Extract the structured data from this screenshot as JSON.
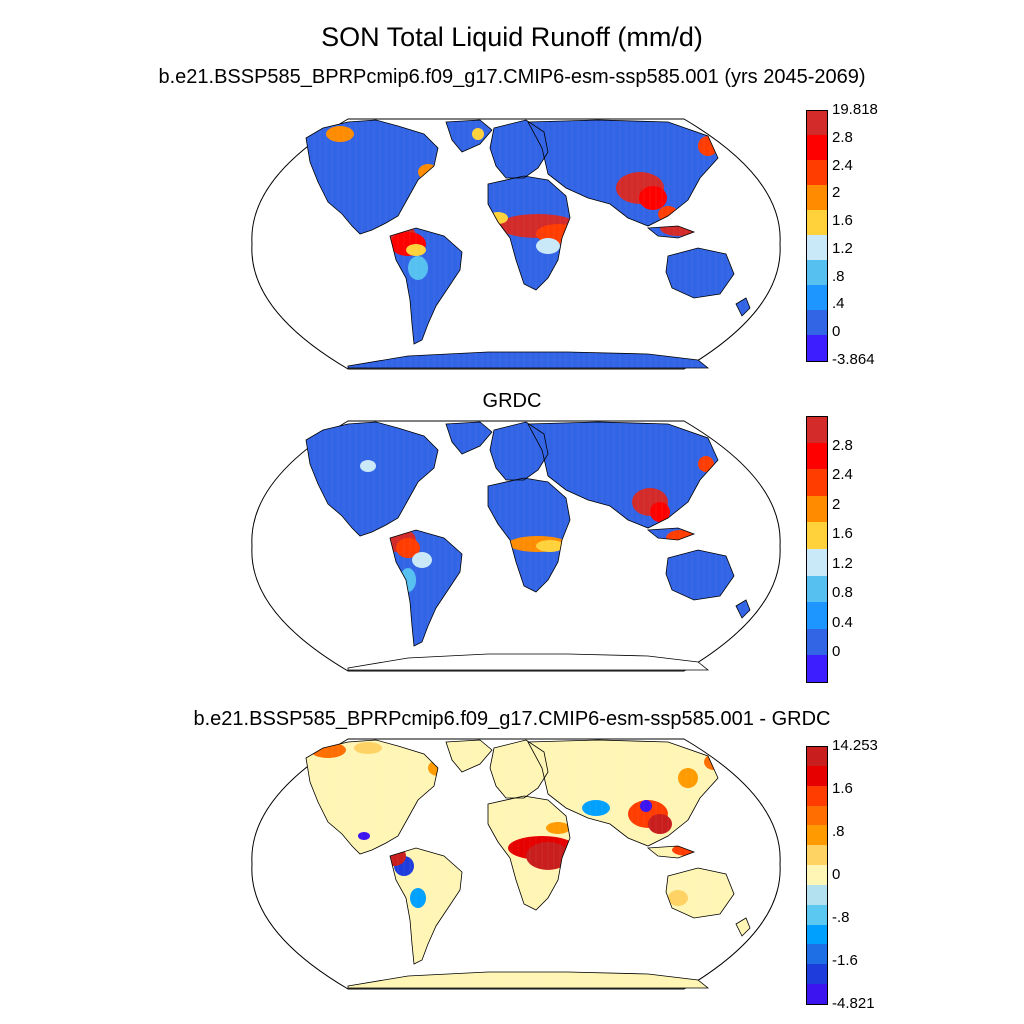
{
  "figure": {
    "title": "SON Total Liquid Runoff (mm/d)"
  },
  "panels": [
    {
      "id": "model",
      "subtitle": "b.e21.BSSP585_BPRPcmip6.f09_g17.CMIP6-esm-ssp585.001 (yrs 2045-2069)",
      "colorbar": {
        "labels": [
          "19.818",
          "2.8",
          "2.4",
          "2",
          "1.6",
          "1.2",
          ".8",
          ".4",
          "0",
          "-3.864"
        ],
        "colors": [
          "#d32a2a",
          "#ff0000",
          "#ff3d00",
          "#ff8c00",
          "#ffd23c",
          "#c9e8f8",
          "#56c0f0",
          "#1e96ff",
          "#3264e6",
          "#3c1eff"
        ]
      }
    },
    {
      "id": "obs",
      "subtitle": "GRDC",
      "colorbar": {
        "labels": [
          "2.8",
          "2.4",
          "2",
          "1.6",
          "1.2",
          "0.8",
          "0.4",
          "0"
        ],
        "colors": [
          "#d32a2a",
          "#ff0000",
          "#ff3d00",
          "#ff8c00",
          "#ffd23c",
          "#c9e8f8",
          "#56c0f0",
          "#1e96ff",
          "#3264e6",
          "#3c1eff"
        ]
      }
    },
    {
      "id": "diff",
      "subtitle": "b.e21.BSSP585_BPRPcmip6.f09_g17.CMIP6-esm-ssp585.001 - GRDC",
      "colorbar": {
        "labels": [
          "14.253",
          "1.6",
          ".8",
          "0",
          "-.8",
          "-1.6",
          "-4.821"
        ],
        "colors": [
          "#c81e1e",
          "#e60000",
          "#ff3d00",
          "#ff6e00",
          "#ff9b00",
          "#ffd264",
          "#fff5b4",
          "#b4e1f0",
          "#5ac8f0",
          "#00a0ff",
          "#1e6ee6",
          "#1e3cdc",
          "#3c14f0"
        ]
      }
    }
  ],
  "map_style": {
    "projection": "robinson",
    "land_base_model": "#3264e6",
    "land_base_diff": "#fff5b4",
    "coast_color": "#000000"
  }
}
